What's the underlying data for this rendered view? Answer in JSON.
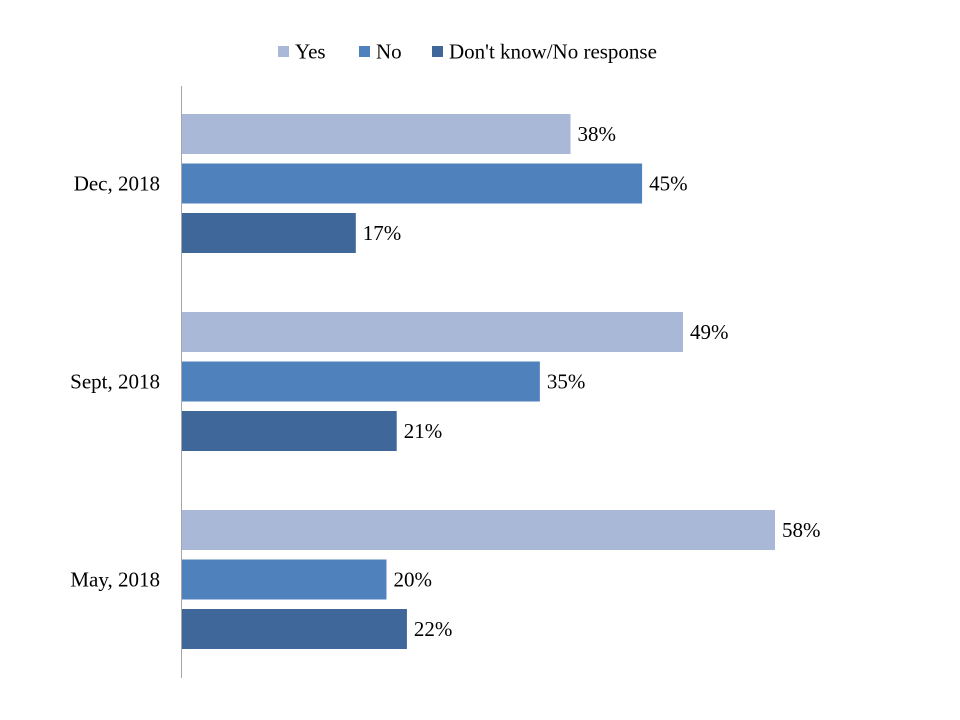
{
  "chart_data": {
    "type": "bar",
    "orientation": "horizontal",
    "categories": [
      "Dec, 2018",
      "Sept, 2018",
      "May, 2018"
    ],
    "series": [
      {
        "name": "Yes",
        "color": "#a9b8d7",
        "values": [
          38,
          49,
          58
        ]
      },
      {
        "name": "No",
        "color": "#4f81bd",
        "values": [
          45,
          35,
          20
        ]
      },
      {
        "name": "Don't know/No response",
        "color": "#3f6799",
        "values": [
          17,
          21,
          22
        ]
      }
    ],
    "data_labels": [
      [
        "38%",
        "45%",
        "17%"
      ],
      [
        "49%",
        "35%",
        "21%"
      ],
      [
        "58%",
        "20%",
        "22%"
      ]
    ],
    "value_unit": "%",
    "xlim": [
      0,
      60
    ],
    "grid": false,
    "axis_labels_visible": false,
    "legend_position": "top"
  }
}
